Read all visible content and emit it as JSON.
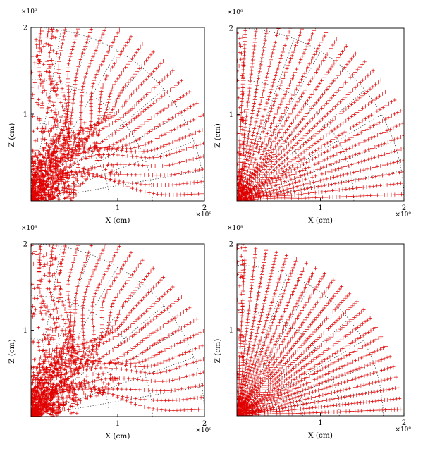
{
  "chart_data": [
    {
      "type": "scatter",
      "panel": "top-left",
      "xlabel": "X (cm)",
      "ylabel": "Z (cm)",
      "x_multiplier": "×10⁸",
      "y_multiplier": "×10⁸",
      "xlim": [
        0,
        2
      ],
      "ylim": [
        0,
        2
      ],
      "xticks": [
        "1",
        "2"
      ],
      "yticks": [
        "1",
        "2"
      ],
      "marker": "+",
      "marker_color": "#e00000",
      "grid": "dotted polar grid (quarter circle and radial spokes)",
      "outer_radius": 2,
      "n_rays": 22,
      "perturbation": 0.85,
      "pattern": "radial lines of markers strongly bent into vortex structures; dense clump near origin"
    },
    {
      "type": "scatter",
      "panel": "top-right",
      "xlabel": "X (cm)",
      "ylabel": "Z (cm)",
      "x_multiplier": "×10⁸",
      "y_multiplier": "×10⁸",
      "xlim": [
        0,
        2
      ],
      "ylim": [
        0,
        2
      ],
      "xticks": [
        "1",
        "2"
      ],
      "yticks": [
        "1",
        "2"
      ],
      "marker": "+",
      "marker_color": "#e00000",
      "grid": "dotted polar grid (quarter circle and radial spokes)",
      "outer_radius": 2,
      "n_rays": 24,
      "perturbation": 0.15,
      "pattern": "nearly straight radial lines of markers; small irregular clump near origin and along Z axis"
    },
    {
      "type": "scatter",
      "panel": "bottom-left",
      "xlabel": "X (cm)",
      "ylabel": "Z (cm)",
      "x_multiplier": "×10⁸",
      "y_multiplier": "×10⁸",
      "xlim": [
        0,
        2
      ],
      "ylim": [
        0,
        2
      ],
      "xticks": [
        "1",
        "2"
      ],
      "yticks": [
        "1",
        "2"
      ],
      "marker": "+",
      "marker_color": "#e00000",
      "grid": "dotted polar grid (quarter circle and radial spokes)",
      "outer_radius": 2,
      "n_rays": 22,
      "perturbation": 1.0,
      "pattern": "strongly curved streamlines with turbulent mixing region and scattered markers"
    },
    {
      "type": "scatter",
      "panel": "bottom-right",
      "xlabel": "X (cm)",
      "ylabel": "Z (cm)",
      "x_multiplier": "×10⁸",
      "y_multiplier": "×10⁸",
      "xlim": [
        0,
        2
      ],
      "ylim": [
        0,
        2
      ],
      "xticks": [
        "1",
        "2"
      ],
      "yticks": [
        "1",
        "2"
      ],
      "marker": "+",
      "marker_color": "#e00000",
      "grid": "dotted polar grid (quarter circle and radial spokes)",
      "outer_radius": 1.75,
      "n_rays": 24,
      "perturbation": 0.1,
      "pattern": "straight radial lines of markers; sparse scattered markers near origin and along Z axis"
    }
  ]
}
